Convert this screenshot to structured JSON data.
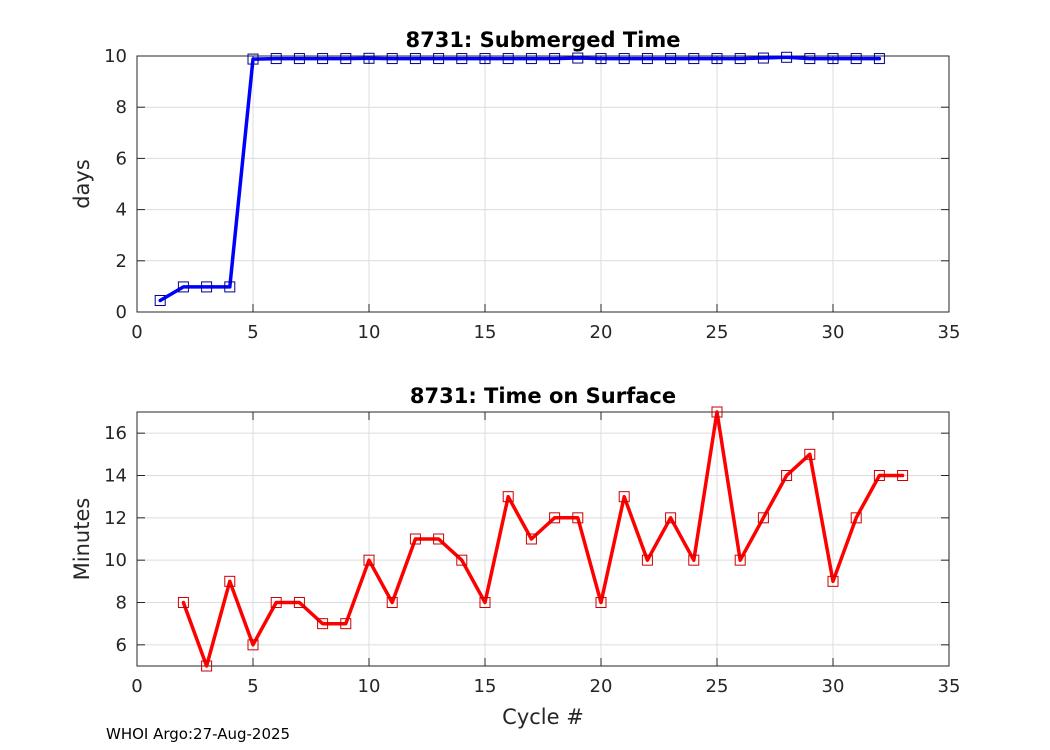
{
  "chart_data": [
    {
      "type": "line",
      "title": "8731: Submerged Time",
      "xlabel": "",
      "ylabel": "days",
      "xlim": [
        0,
        35
      ],
      "ylim": [
        0,
        10
      ],
      "xticks": [
        0,
        5,
        10,
        15,
        20,
        25,
        30,
        35
      ],
      "yticks": [
        0,
        2,
        4,
        6,
        8,
        10
      ],
      "grid": true,
      "line_color": "#0000ff",
      "marker_color": "#00008b",
      "marker": "square",
      "x": [
        1,
        2,
        3,
        4,
        5,
        6,
        7,
        8,
        9,
        10,
        11,
        12,
        13,
        14,
        15,
        16,
        17,
        18,
        19,
        20,
        21,
        22,
        23,
        24,
        25,
        26,
        27,
        28,
        29,
        30,
        31,
        32
      ],
      "y": [
        0.45,
        0.98,
        0.98,
        0.98,
        9.88,
        9.9,
        9.9,
        9.9,
        9.9,
        9.91,
        9.9,
        9.9,
        9.9,
        9.9,
        9.9,
        9.9,
        9.9,
        9.9,
        9.92,
        9.9,
        9.9,
        9.9,
        9.9,
        9.9,
        9.9,
        9.9,
        9.92,
        9.95,
        9.9,
        9.9,
        9.9,
        9.9
      ]
    },
    {
      "type": "line",
      "title": "8731: Time on Surface",
      "xlabel": "Cycle #",
      "ylabel": "Minutes",
      "xlim": [
        0,
        35
      ],
      "ylim": [
        5,
        17
      ],
      "xticks": [
        0,
        5,
        10,
        15,
        20,
        25,
        30,
        35
      ],
      "yticks": [
        6,
        8,
        10,
        12,
        14,
        16
      ],
      "grid": true,
      "line_color": "#ff0000",
      "marker_color": "#cc0000",
      "marker": "square",
      "x": [
        2,
        3,
        4,
        5,
        6,
        7,
        8,
        9,
        10,
        11,
        12,
        13,
        14,
        15,
        16,
        17,
        18,
        19,
        20,
        21,
        22,
        23,
        24,
        25,
        26,
        27,
        28,
        29,
        30,
        31,
        32,
        33
      ],
      "y": [
        8,
        5,
        9,
        6,
        8,
        8,
        7,
        7,
        10,
        8,
        11,
        11,
        10,
        8,
        13,
        11,
        12,
        12,
        8,
        13,
        10,
        12,
        10,
        17,
        10,
        12,
        14,
        15,
        9,
        12,
        14,
        14
      ]
    }
  ],
  "footer": "WHOI Argo:27-Aug-2025"
}
